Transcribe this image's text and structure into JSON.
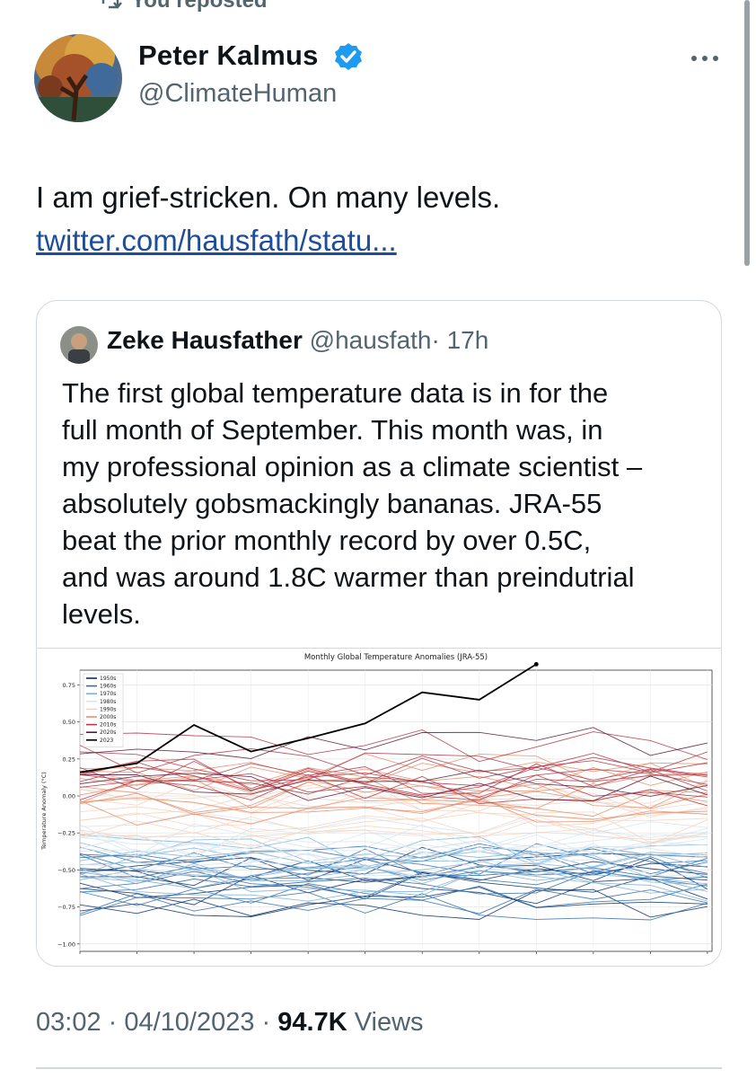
{
  "repost": {
    "label": "You reposted"
  },
  "author": {
    "name": "Peter Kalmus",
    "handle": "@ClimateHuman"
  },
  "tweet": {
    "text": "I am grief-stricken. On many levels.",
    "link": "twitter.com/hausfath/statu..."
  },
  "quoted": {
    "name": "Zeke Hausfather",
    "handle": "@hausfath",
    "time": "· 17h",
    "lines": [
      "The first global temperature data is in for the",
      "full month of September. This month was, in",
      "my professional opinion as a climate scientist –",
      "absolutely gobsmackingly bananas. JRA-55",
      "beat the prior monthly record by over 0.5C,",
      "and was around 1.8C warmer than preindutrial",
      "levels."
    ]
  },
  "chart_data": {
    "type": "line",
    "title": "Monthly Global Temperature Anomalies (JRA-55)",
    "ylabel": "Temperature Anomaly (°C)",
    "xlabel": "",
    "ylim": [
      -1.05,
      0.85
    ],
    "yticks": [
      -1.0,
      -0.75,
      -0.5,
      -0.25,
      0.0,
      0.25,
      0.5,
      0.75
    ],
    "ytick_labels": [
      "−1.00",
      "−0.75",
      "−0.50",
      "−0.25",
      "0.00",
      "0.25",
      "0.50",
      "0.75"
    ],
    "x": [
      1,
      2,
      3,
      4,
      5,
      6,
      7,
      8,
      9,
      10,
      11,
      12
    ],
    "grid": true,
    "legend_placement": "top-left",
    "legend": [
      {
        "name": "1950s",
        "color": "#08306b"
      },
      {
        "name": "1960s",
        "color": "#2f6fac"
      },
      {
        "name": "1970s",
        "color": "#7fb2d8"
      },
      {
        "name": "1980s",
        "color": "#d6e5f0"
      },
      {
        "name": "1990s",
        "color": "#f5d3c0"
      },
      {
        "name": "2000s",
        "color": "#e6906e"
      },
      {
        "name": "2010s",
        "color": "#b33a4a"
      },
      {
        "name": "2020s",
        "color": "#5a1b3a"
      },
      {
        "name": "2023",
        "color": "#000000"
      }
    ],
    "highlight_series": {
      "name": "2023",
      "values": [
        0.16,
        0.22,
        0.48,
        0.3,
        0.39,
        0.49,
        0.7,
        0.65,
        0.89
      ]
    },
    "decade_bands": [
      {
        "decade": "1950s",
        "color": "#08306b",
        "center": -0.6,
        "count": 8
      },
      {
        "decade": "1960s",
        "color": "#2f6fac",
        "center": -0.58,
        "count": 10
      },
      {
        "decade": "1970s",
        "color": "#7fb2d8",
        "center": -0.48,
        "count": 10
      },
      {
        "decade": "1980s",
        "color": "#d6e5f0",
        "center": -0.3,
        "count": 10
      },
      {
        "decade": "1990s",
        "color": "#f5d3c0",
        "center": -0.12,
        "count": 10
      },
      {
        "decade": "2000s",
        "color": "#e6906e",
        "center": 0.03,
        "count": 10
      },
      {
        "decade": "2010s",
        "color": "#b33a4a",
        "center": 0.2,
        "count": 10
      },
      {
        "decade": "2020s",
        "color": "#5a1b3a",
        "center": 0.22,
        "count": 3
      }
    ]
  },
  "footer": {
    "time": "03:02 · 04/10/2023 ·",
    "views_count": "94.7K",
    "views_label": "Views"
  }
}
